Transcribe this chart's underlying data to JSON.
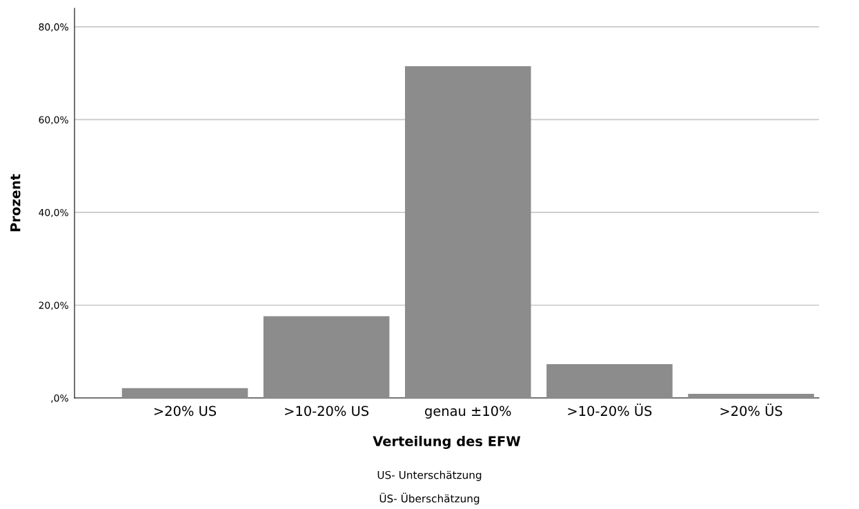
{
  "chart_data": {
    "type": "bar",
    "xlabel": "Verteilung des EFW",
    "ylabel": "Prozent",
    "categories": [
      ">20% US",
      ">10-20% US",
      "genau ±10%",
      ">10-20% ÜS",
      ">20% ÜS"
    ],
    "values": [
      2.1,
      17.6,
      71.5,
      7.3,
      0.9
    ],
    "color": "#8c8c8c",
    "ylim": [
      0,
      84
    ],
    "yticks": [
      {
        "value": 0,
        "label": ",0%"
      },
      {
        "value": 20,
        "label": "20,0%"
      },
      {
        "value": 40,
        "label": "40,0%"
      },
      {
        "value": 60,
        "label": "60,0%"
      },
      {
        "value": 80,
        "label": "80,0%"
      }
    ],
    "grid": "y",
    "legend": false,
    "annotations": [
      "US- Unterschätzung",
      "ÜS- Überschätzung"
    ]
  }
}
